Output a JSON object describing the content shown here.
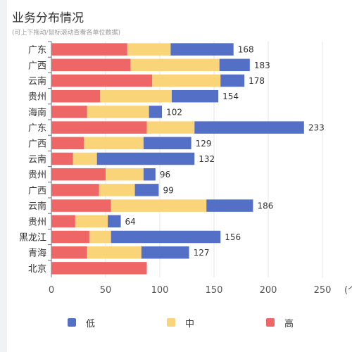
{
  "header": {
    "title": "业务分布情况",
    "subtitle": "(可上下拖动/鼠标滚动查看各单位数据)"
  },
  "axis": {
    "unit_label": "(个"
  },
  "colors": {
    "high": "#ee6666",
    "mid": "#fad479",
    "low": "#5470c6"
  },
  "legend": [
    {
      "label": "低",
      "color": "#5470c6"
    },
    {
      "label": "中",
      "color": "#fad479"
    },
    {
      "label": "高",
      "color": "#ee6666"
    }
  ],
  "chart_data": {
    "type": "bar",
    "orientation": "horizontal",
    "stacked": true,
    "title": "业务分布情况",
    "categories": [
      "广东",
      "广西",
      "云南",
      "贵州",
      "海南",
      "广东",
      "广西",
      "云南",
      "贵州",
      "广西",
      "云南",
      "贵州",
      "黑龙江",
      "青海",
      "北京"
    ],
    "series": [
      {
        "name": "高",
        "values": [
          70,
          73,
          93,
          45,
          33,
          88,
          30,
          20,
          50,
          44,
          55,
          22,
          35,
          33,
          88
        ]
      },
      {
        "name": "中",
        "values": [
          40,
          82,
          63,
          66,
          57,
          44,
          55,
          22,
          35,
          33,
          88,
          30,
          20,
          50,
          0
        ]
      },
      {
        "name": "低",
        "values": [
          58,
          28,
          22,
          43,
          12,
          101,
          44,
          90,
          11,
          22,
          43,
          12,
          101,
          44,
          0
        ]
      }
    ],
    "totals": [
      168,
      183,
      178,
      154,
      102,
      233,
      129,
      132,
      96,
      99,
      186,
      64,
      156,
      127,
      null
    ],
    "xlim": [
      0,
      250
    ],
    "xticks": [
      0,
      50,
      100,
      150,
      200,
      250
    ],
    "grid": true,
    "legend_position": "bottom"
  }
}
